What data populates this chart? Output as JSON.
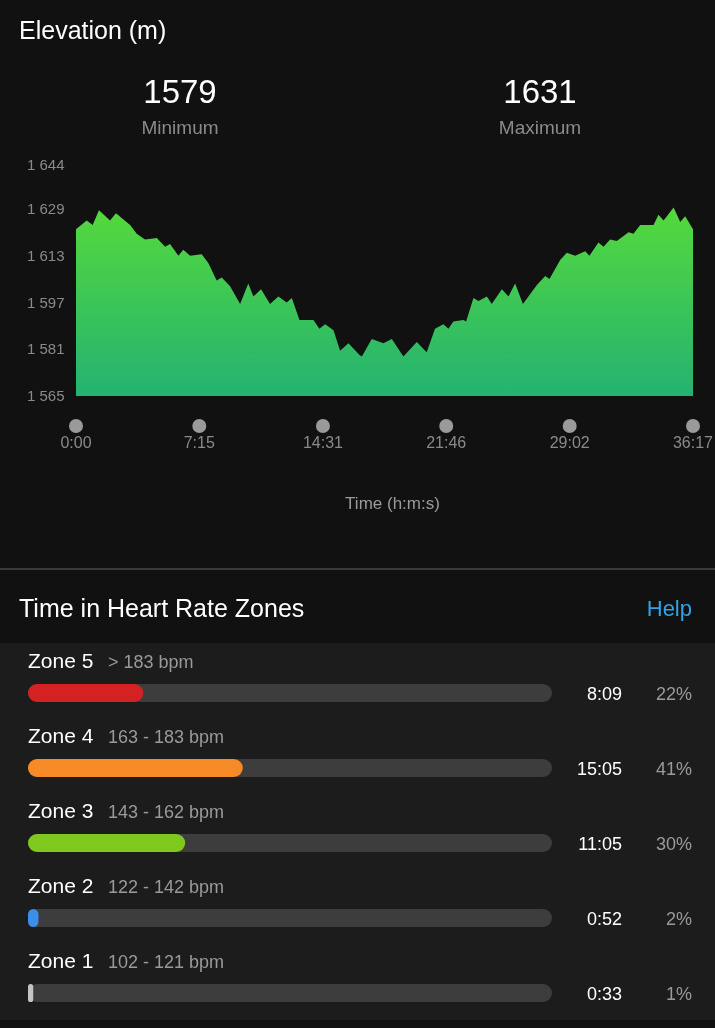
{
  "chart_data": [
    {
      "type": "area",
      "title": "Elevation (m)",
      "xlabel": "Time (h:m:s)",
      "annotations": [
        "1579",
        "Minimum",
        "1631",
        "Maximum"
      ],
      "x": [
        0,
        0.63,
        0.98,
        1.35,
        2.0,
        2.35,
        3.18,
        3.57,
        4.06,
        4.75,
        5.24,
        5.53,
        6.02,
        6.31,
        6.71,
        7.39,
        7.78,
        8.27,
        8.57,
        9.06,
        9.65,
        10.13,
        10.43,
        10.88,
        11.41,
        11.9,
        12.39,
        12.69,
        13.14,
        13.96,
        14.31,
        14.65,
        15.14,
        15.53,
        16.02,
        16.67,
        16.81,
        17.39,
        18.08,
        18.57,
        19.25,
        20.04,
        20.62,
        21.11,
        21.6,
        21.9,
        22.19,
        22.78,
        22.94,
        23.37,
        23.66,
        24.16,
        24.45,
        25.04,
        25.43,
        25.82,
        26.28,
        27.1,
        27.59,
        27.84,
        28.47,
        28.86,
        29.35,
        29.94,
        30.19,
        30.72,
        31.02,
        31.41,
        31.8,
        32.49,
        32.78,
        33.18,
        33.96,
        34.25,
        34.55,
        35.14,
        35.53,
        35.82,
        36.28
      ],
      "series": [
        {
          "color": "#55d93c",
          "values": [
            1622,
            1625,
            1623.5,
            1628.5,
            1625,
            1627.5,
            1623.5,
            1620.5,
            1618.5,
            1619,
            1616,
            1617,
            1613,
            1615,
            1613,
            1613.5,
            1610.5,
            1604.5,
            1605.5,
            1602.5,
            1596.5,
            1603.5,
            1599,
            1601.5,
            1596.5,
            1599,
            1597,
            1598.5,
            1591,
            1591,
            1588,
            1589.5,
            1587.5,
            1580.5,
            1583,
            1579,
            1578.5,
            1584.5,
            1583,
            1584.5,
            1578.5,
            1583.5,
            1580,
            1588,
            1589.5,
            1588,
            1590.5,
            1591,
            1590.5,
            1598.5,
            1597.5,
            1599,
            1596.5,
            1601.5,
            1599,
            1603.5,
            1596.5,
            1603,
            1606,
            1605,
            1611.5,
            1614,
            1613,
            1614.5,
            1613,
            1617.5,
            1616,
            1618.5,
            1618,
            1621,
            1620.5,
            1623.5,
            1623.5,
            1627,
            1625,
            1629.5,
            1624.5,
            1626.5,
            1622
          ]
        }
      ],
      "xlim": [
        0,
        36.28
      ],
      "xticks": [
        {
          "value": 0,
          "label": "0:00"
        },
        {
          "value": 7.25,
          "label": "7:15"
        },
        {
          "value": 14.52,
          "label": "14:31"
        },
        {
          "value": 21.77,
          "label": "21:46"
        },
        {
          "value": 29.03,
          "label": "29:02"
        },
        {
          "value": 36.28,
          "label": "36:17"
        }
      ],
      "ylim": [
        1565,
        1644
      ],
      "yticks": [
        {
          "value": 1565,
          "label": "1 565"
        },
        {
          "value": 1581,
          "label": "1 581"
        },
        {
          "value": 1597,
          "label": "1 597"
        },
        {
          "value": 1613,
          "label": "1 613"
        },
        {
          "value": 1629,
          "label": "1 629"
        },
        {
          "value": 1644,
          "label": "1 644"
        }
      ],
      "grid": false
    },
    {
      "type": "bar",
      "orientation": "horizontal",
      "title": "Time in Heart Rate Zones",
      "categories": [
        "Zone 5",
        "Zone 4",
        "Zone 3",
        "Zone 2",
        "Zone 1"
      ],
      "values": [
        22,
        41,
        30,
        2,
        1
      ],
      "colors": [
        "#d42121",
        "#f68a26",
        "#7fc81e",
        "#3b8fe9",
        "#c4c4c4"
      ],
      "value_labels": [
        "22%",
        "41%",
        "30%",
        "2%",
        "1%"
      ],
      "xlim": [
        0,
        100
      ],
      "tick_labels": "y",
      "annotations": [
        "Help",
        "> 183 bpm",
        "8:09",
        "163 - 183 bpm",
        "15:05",
        "143 - 162 bpm",
        "11:05",
        "122 - 142 bpm",
        "0:52",
        "102 - 121 bpm",
        "0:33"
      ]
    }
  ]
}
